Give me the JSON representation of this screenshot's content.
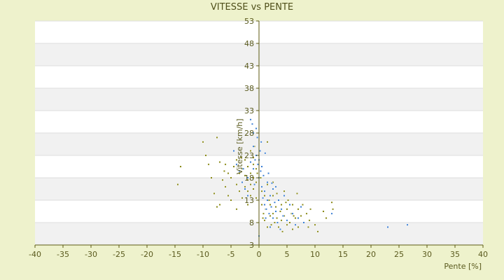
{
  "chart_data": {
    "type": "scatter",
    "title": "VITESSE vs PENTE",
    "xlabel": "Pente [%]",
    "ylabel": "Vitesse [km/h]",
    "xlim": [
      -40,
      40
    ],
    "ylim": [
      3,
      53
    ],
    "x_ticks": [
      -40,
      -35,
      -30,
      -25,
      -20,
      -15,
      -10,
      -5,
      0,
      5,
      10,
      15,
      20,
      25,
      30,
      35,
      40
    ],
    "y_ticks": [
      3,
      8,
      13,
      18,
      23,
      28,
      33,
      38,
      43,
      48,
      53
    ],
    "background": "#eef2cc",
    "plot_band_colors": [
      "#ffffff",
      "#f1f1f1"
    ],
    "axis_color": "#5c5a12",
    "series": [
      {
        "color": "#8a8a18",
        "points": [
          [
            -14,
            20.5
          ],
          [
            -14.5,
            16.5
          ],
          [
            -10,
            26
          ],
          [
            -9.5,
            23
          ],
          [
            -9,
            21
          ],
          [
            -8.5,
            18
          ],
          [
            -8,
            14.5
          ],
          [
            -7.5,
            27
          ],
          [
            -7.5,
            11.5
          ],
          [
            -7,
            21.5
          ],
          [
            -7,
            12
          ],
          [
            -6.5,
            17.5
          ],
          [
            -6,
            21
          ],
          [
            -6,
            16
          ],
          [
            -5.5,
            19
          ],
          [
            -5.5,
            14
          ],
          [
            -5,
            18
          ],
          [
            -5,
            13
          ],
          [
            -4.5,
            24
          ],
          [
            -4.5,
            20.5
          ],
          [
            -4,
            22
          ],
          [
            -4,
            16.5
          ],
          [
            -4,
            11
          ],
          [
            -3.5,
            19
          ],
          [
            -3.5,
            15
          ],
          [
            -3,
            20
          ],
          [
            -3,
            17
          ],
          [
            -3,
            13.5
          ],
          [
            -2.5,
            18.5
          ],
          [
            -2.5,
            22
          ],
          [
            -2.5,
            16
          ],
          [
            -2,
            20.5
          ],
          [
            -2,
            17.5
          ],
          [
            -2,
            15
          ],
          [
            -2,
            12
          ],
          [
            -1.5,
            19
          ],
          [
            -1.5,
            24
          ],
          [
            -1.5,
            16.5
          ],
          [
            -1.5,
            14
          ],
          [
            -1,
            21
          ],
          [
            -1,
            18
          ],
          [
            -1,
            15.5
          ],
          [
            -1,
            22.5
          ],
          [
            -0.5,
            20
          ],
          [
            -0.5,
            17
          ],
          [
            -0.5,
            13.5
          ],
          [
            -0.3,
            19
          ],
          [
            0,
            22
          ],
          [
            0.3,
            18
          ],
          [
            0.5,
            15
          ],
          [
            0.5,
            12
          ],
          [
            0.8,
            10
          ],
          [
            1,
            14
          ],
          [
            1,
            8.5
          ],
          [
            1.2,
            11
          ],
          [
            1.5,
            16.5
          ],
          [
            1.5,
            7
          ],
          [
            1.8,
            13
          ],
          [
            2,
            9.5
          ],
          [
            2,
            12
          ],
          [
            2.2,
            7.5
          ],
          [
            2.5,
            14
          ],
          [
            2.5,
            10
          ],
          [
            2.8,
            8
          ],
          [
            3,
            11.5
          ],
          [
            3,
            16
          ],
          [
            3.2,
            9
          ],
          [
            3.5,
            13
          ],
          [
            3.5,
            7
          ],
          [
            3.8,
            10.5
          ],
          [
            4,
            8.5
          ],
          [
            4,
            12
          ],
          [
            4.2,
            6
          ],
          [
            4.5,
            15
          ],
          [
            4.5,
            9.5
          ],
          [
            5,
            11
          ],
          [
            5,
            7.5
          ],
          [
            5.2,
            13
          ],
          [
            5.5,
            8
          ],
          [
            5.8,
            10
          ],
          [
            6,
            12
          ],
          [
            6,
            6.5
          ],
          [
            6.5,
            9
          ],
          [
            6.8,
            14.5
          ],
          [
            7,
            11
          ],
          [
            7,
            7
          ],
          [
            7.5,
            9.5
          ],
          [
            7.8,
            12
          ],
          [
            8,
            8
          ],
          [
            8.5,
            10
          ],
          [
            8.8,
            7
          ],
          [
            9,
            8.5
          ],
          [
            9.2,
            11
          ],
          [
            10,
            7.5
          ],
          [
            10.5,
            6
          ],
          [
            11.5,
            10.5
          ],
          [
            12,
            9
          ],
          [
            13,
            12.5
          ],
          [
            13.2,
            11
          ],
          [
            1.5,
            26
          ],
          [
            -0.8,
            25
          ],
          [
            2.5,
            17
          ],
          [
            3.2,
            14.5
          ],
          [
            4.8,
            12.5
          ],
          [
            6.2,
            9.5
          ],
          [
            0.7,
            9
          ],
          [
            -6.2,
            19.5
          ],
          [
            -3.2,
            22.5
          ]
        ]
      },
      {
        "color": "#3b7fd4",
        "points": [
          [
            -4.5,
            24
          ],
          [
            -4,
            21
          ],
          [
            -3.5,
            19.5
          ],
          [
            -3,
            17
          ],
          [
            -2.5,
            15.5
          ],
          [
            -2,
            18
          ],
          [
            -2,
            14
          ],
          [
            -1.5,
            21.5
          ],
          [
            -1.5,
            31
          ],
          [
            -1.2,
            30
          ],
          [
            -1,
            28
          ],
          [
            -1,
            25
          ],
          [
            -1,
            20
          ],
          [
            -0.8,
            16.5
          ],
          [
            -0.5,
            29
          ],
          [
            -0.5,
            23
          ],
          [
            -0.3,
            27
          ],
          [
            -0.2,
            21
          ],
          [
            0,
            22
          ],
          [
            0,
            18
          ],
          [
            0,
            5
          ],
          [
            0.2,
            24
          ],
          [
            0.3,
            19.5
          ],
          [
            0.5,
            16
          ],
          [
            0.5,
            20.5
          ],
          [
            0.7,
            13.5
          ],
          [
            0.8,
            18.5
          ],
          [
            1,
            12
          ],
          [
            1,
            15
          ],
          [
            1.2,
            9
          ],
          [
            1.3,
            11
          ],
          [
            1.5,
            17
          ],
          [
            1.5,
            13
          ],
          [
            1.8,
            10
          ],
          [
            2,
            14
          ],
          [
            2,
            7
          ],
          [
            2.2,
            11.5
          ],
          [
            2.5,
            15.5
          ],
          [
            2.5,
            9
          ],
          [
            2.8,
            12.5
          ],
          [
            3,
            10.5
          ],
          [
            3,
            16
          ],
          [
            3.3,
            8
          ],
          [
            3.5,
            13
          ],
          [
            3.8,
            6.5
          ],
          [
            4,
            11
          ],
          [
            4.3,
            9.5
          ],
          [
            4.5,
            14
          ],
          [
            5,
            8.5
          ],
          [
            5.5,
            12
          ],
          [
            6,
            10
          ],
          [
            6.5,
            7.5
          ],
          [
            7,
            9
          ],
          [
            7.5,
            11.5
          ],
          [
            8,
            8
          ],
          [
            13,
            10
          ],
          [
            23,
            7
          ],
          [
            26.5,
            7.5
          ],
          [
            -0.7,
            22
          ],
          [
            1.7,
            19
          ],
          [
            0.4,
            26
          ],
          [
            -2.8,
            20
          ],
          [
            1.1,
            23.5
          ],
          [
            2.3,
            16.8
          ]
        ]
      }
    ]
  }
}
